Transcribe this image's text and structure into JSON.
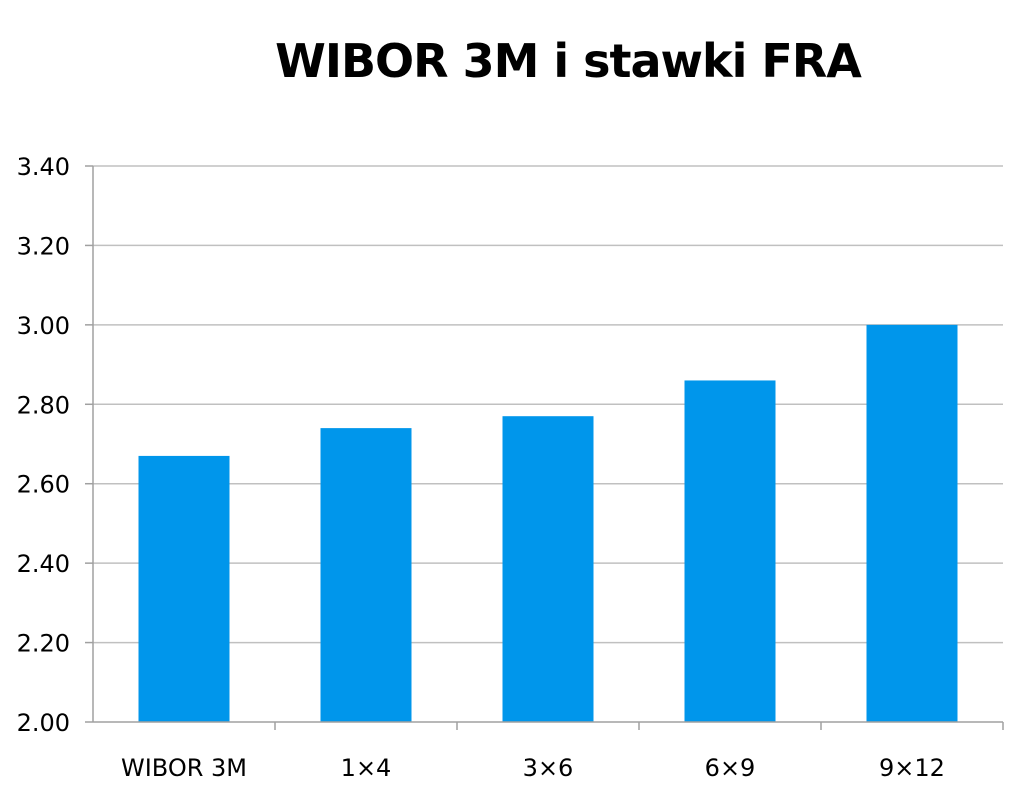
{
  "chart_data": {
    "type": "bar",
    "title": "WIBOR 3M i stawki FRA",
    "categories": [
      "WIBOR 3M",
      "1x4",
      "3x6",
      "6x9",
      "9x12"
    ],
    "values": [
      2.67,
      2.74,
      2.77,
      2.86,
      3.0
    ],
    "ylim": [
      2.0,
      3.4
    ],
    "yticks": [
      "2.00",
      "2.20",
      "2.40",
      "2.60",
      "2.80",
      "3.00",
      "3.20",
      "3.40"
    ],
    "ytick_values": [
      2.0,
      2.2,
      2.4,
      2.6,
      2.8,
      3.0,
      3.2,
      3.4
    ],
    "grid": true,
    "legend": "none",
    "bar_color": "#0096EB",
    "grid_color": "#C0C0C0",
    "axis_color": "#A0A0A0"
  }
}
